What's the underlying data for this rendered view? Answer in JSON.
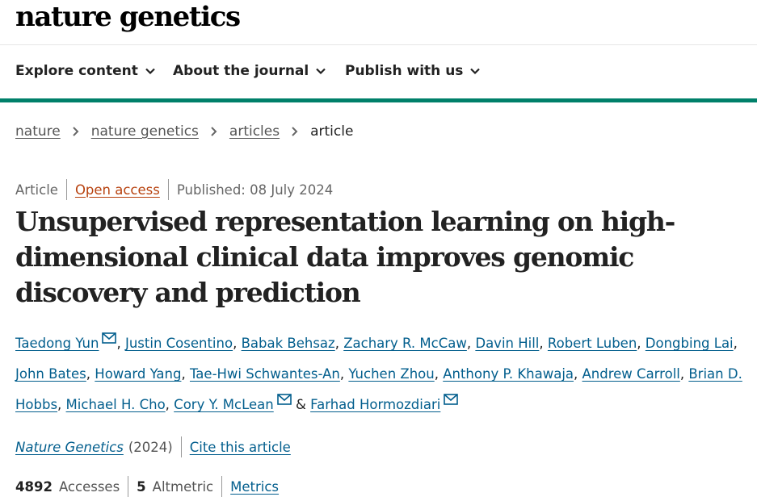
{
  "brand": {
    "logo_text": "nature genetics"
  },
  "nav": {
    "items": [
      {
        "label": "Explore content",
        "icon": "chevron-down-icon"
      },
      {
        "label": "About the journal",
        "icon": "chevron-down-icon"
      },
      {
        "label": "Publish with us",
        "icon": "chevron-down-icon"
      }
    ]
  },
  "breadcrumb": {
    "items": [
      "nature",
      "nature genetics",
      "articles"
    ],
    "current": "article"
  },
  "meta": {
    "type": "Article",
    "access": "Open access",
    "published": "Published: 08 July 2024"
  },
  "article": {
    "title": "Unsupervised representation learning on high-dimensional clinical data improves genomic discovery and prediction"
  },
  "authors": [
    {
      "name": "Taedong Yun",
      "mail": true
    },
    {
      "name": "Justin Cosentino"
    },
    {
      "name": "Babak Behsaz"
    },
    {
      "name": "Zachary R. McCaw"
    },
    {
      "name": "Davin Hill"
    },
    {
      "name": "Robert Luben"
    },
    {
      "name": "Dongbing Lai"
    },
    {
      "name": "John Bates"
    },
    {
      "name": "Howard Yang"
    },
    {
      "name": "Tae-Hwi Schwantes-An"
    },
    {
      "name": "Yuchen Zhou"
    },
    {
      "name": "Anthony P. Khawaja"
    },
    {
      "name": "Andrew Carroll"
    },
    {
      "name": "Brian D. Hobbs"
    },
    {
      "name": "Michael H. Cho"
    },
    {
      "name": "Cory Y. McLean",
      "mail": true
    },
    {
      "name": "Farhad Hormozdiari",
      "mail": true
    }
  ],
  "citation": {
    "journal": "Nature Genetics",
    "year": "(2024)",
    "cite_link": "Cite this article"
  },
  "metrics": {
    "accesses_count": "4892",
    "accesses_label": "Accesses",
    "altmetric_count": "5",
    "altmetric_label": "Altmetric",
    "metrics_link": "Metrics"
  },
  "colors": {
    "accent_green": "#00806a",
    "link_blue": "#025e8d",
    "open_access_orange": "#b7410e"
  }
}
